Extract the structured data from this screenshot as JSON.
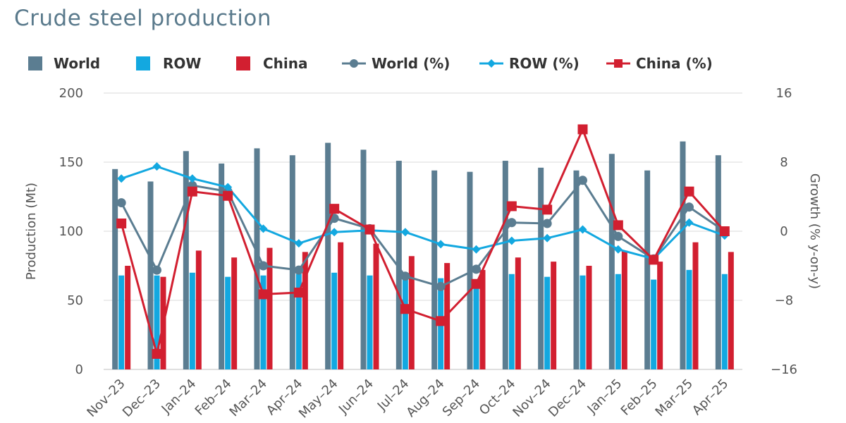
{
  "title": "Crude steel production",
  "legend": [
    {
      "key": "world",
      "label": "World",
      "kind": "bar",
      "color": "#5b7d91"
    },
    {
      "key": "row",
      "label": "ROW",
      "kind": "bar",
      "color": "#13a8e0"
    },
    {
      "key": "china",
      "label": "China",
      "kind": "bar",
      "color": "#d21f30"
    },
    {
      "key": "world_pct",
      "label": "World (%)",
      "kind": "line-circle",
      "color": "#5b7d91"
    },
    {
      "key": "row_pct",
      "label": "ROW (%)",
      "kind": "line-diamond",
      "color": "#13a8e0"
    },
    {
      "key": "china_pct",
      "label": "China (%)",
      "kind": "line-square",
      "color": "#d21f30"
    }
  ],
  "chart_data": {
    "type": "bar",
    "title": "Crude steel production",
    "categories": [
      "Nov-23",
      "Dec-23",
      "Jan-24",
      "Feb-24",
      "Mar-24",
      "Apr-24",
      "May-24",
      "Jun-24",
      "Jul-24",
      "Aug-24",
      "Sep-24",
      "Oct-24",
      "Nov-24",
      "Dec-24",
      "Jan-25",
      "Feb-25",
      "Mar-25",
      "Apr-25"
    ],
    "ylabel": "Production (Mt)",
    "ylabel_right": "Growth (% y-on-y)",
    "ylim": [
      0,
      200
    ],
    "yticks": [
      0,
      50,
      100,
      150,
      200
    ],
    "ylim_right": [
      -16,
      16
    ],
    "yticks_right": [
      -16,
      -8,
      0,
      8,
      16
    ],
    "grid": true,
    "legend_position": "top",
    "series": [
      {
        "name": "World",
        "type": "bar",
        "axis": "left",
        "color": "#5b7d91",
        "values": [
          145,
          136,
          158,
          149,
          160,
          155,
          164,
          159,
          151,
          144,
          143,
          151,
          146,
          144,
          156,
          144,
          165,
          155
        ]
      },
      {
        "name": "ROW",
        "type": "bar",
        "axis": "left",
        "color": "#13a8e0",
        "values": [
          68,
          68,
          70,
          67,
          68,
          69,
          70,
          68,
          69,
          66,
          64,
          69,
          67,
          68,
          69,
          65,
          72,
          69
        ]
      },
      {
        "name": "China",
        "type": "bar",
        "axis": "left",
        "color": "#d21f30",
        "values": [
          75,
          67,
          86,
          81,
          88,
          85,
          92,
          91,
          82,
          77,
          72,
          81,
          78,
          75,
          86,
          78,
          92,
          85
        ]
      },
      {
        "name": "World (%)",
        "type": "line",
        "axis": "right",
        "marker": "circle",
        "color": "#5b7d91",
        "values": [
          3.3,
          -4.5,
          5.3,
          4.6,
          -4.0,
          -4.5,
          1.5,
          0.3,
          -5.2,
          -6.4,
          -4.4,
          1.0,
          0.9,
          5.9,
          -0.6,
          -3.2,
          2.8,
          0.0
        ]
      },
      {
        "name": "ROW (%)",
        "type": "line",
        "axis": "right",
        "marker": "diamond",
        "color": "#13a8e0",
        "values": [
          6.1,
          7.5,
          6.1,
          5.1,
          0.3,
          -1.4,
          -0.1,
          0.1,
          -0.1,
          -1.5,
          -2.1,
          -1.1,
          -0.8,
          0.2,
          -2.1,
          -3.2,
          1.0,
          -0.5
        ]
      },
      {
        "name": "China (%)",
        "type": "line",
        "axis": "right",
        "marker": "square",
        "color": "#d21f30",
        "values": [
          0.9,
          -14.2,
          4.6,
          4.1,
          -7.3,
          -7.1,
          2.6,
          0.2,
          -9.0,
          -10.4,
          -6.1,
          2.9,
          2.5,
          11.8,
          0.7,
          -3.3,
          4.6,
          0.0
        ]
      }
    ]
  }
}
